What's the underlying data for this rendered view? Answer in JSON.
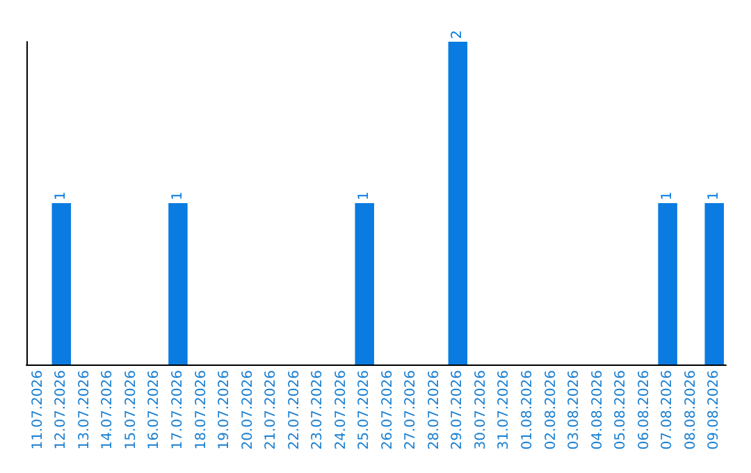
{
  "chart_data": {
    "type": "bar",
    "categories": [
      "11.07.2026",
      "12.07.2026",
      "13.07.2026",
      "14.07.2026",
      "15.07.2026",
      "16.07.2026",
      "17.07.2026",
      "18.07.2026",
      "19.07.2026",
      "20.07.2026",
      "21.07.2026",
      "22.07.2026",
      "23.07.2026",
      "24.07.2026",
      "25.07.2026",
      "26.07.2026",
      "27.07.2026",
      "28.07.2026",
      "29.07.2026",
      "30.07.2026",
      "31.07.2026",
      "01.08.2026",
      "02.08.2026",
      "03.08.2026",
      "04.08.2026",
      "05.08.2026",
      "06.08.2026",
      "07.08.2026",
      "08.08.2026",
      "09.08.2026"
    ],
    "values": [
      0,
      1,
      0,
      0,
      0,
      0,
      1,
      0,
      0,
      0,
      0,
      0,
      0,
      0,
      1,
      0,
      0,
      0,
      2,
      0,
      0,
      0,
      0,
      0,
      0,
      0,
      0,
      1,
      0,
      1
    ],
    "value_labels": [
      null,
      "1",
      null,
      null,
      null,
      null,
      "1",
      null,
      null,
      null,
      null,
      null,
      null,
      null,
      "1",
      null,
      null,
      null,
      "2",
      null,
      null,
      null,
      null,
      null,
      null,
      null,
      null,
      "1",
      null,
      "1"
    ],
    "color": "#0a7be0",
    "grid": false,
    "tick_labels": "x"
  }
}
